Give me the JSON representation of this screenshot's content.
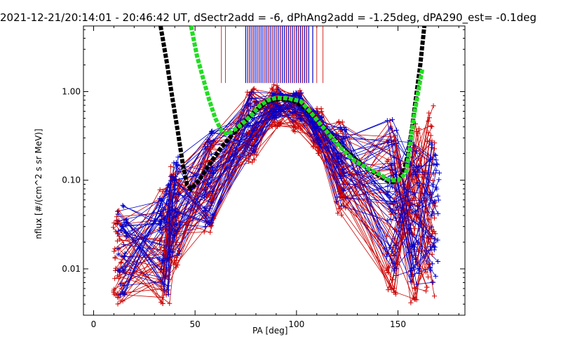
{
  "chart_data": {
    "type": "line",
    "title": "2021-12-21/20:14:01 - 20:46:42 UT, dSectr2add = -6, dPhAng2add = -1.25deg, dPA290_est= -0.1deg",
    "xlabel": "PA [deg]",
    "ylabel": "nflux [#/(cm^2 s sr MeV)]",
    "x_ticks": [
      "0",
      "50",
      "100",
      "150"
    ],
    "y_ticks": [
      "0.01",
      "0.10",
      "1.00"
    ],
    "xlim": [
      -5,
      183
    ],
    "ylim": [
      0.003,
      5.5
    ],
    "y_scale": "log",
    "legend": "none",
    "series": [
      {
        "type": "dashed-thick",
        "color": "#000000",
        "points": [
          [
            33,
            5.5
          ],
          [
            36,
            2.2
          ],
          [
            39,
            0.8
          ],
          [
            42,
            0.3
          ],
          [
            44,
            0.15
          ],
          [
            46,
            0.09
          ],
          [
            48,
            0.08
          ],
          [
            52,
            0.1
          ],
          [
            57,
            0.15
          ],
          [
            62,
            0.22
          ],
          [
            68,
            0.32
          ],
          [
            74,
            0.45
          ],
          [
            80,
            0.62
          ],
          [
            86,
            0.78
          ],
          [
            92,
            0.83
          ],
          [
            98,
            0.8
          ],
          [
            104,
            0.66
          ],
          [
            110,
            0.48
          ],
          [
            116,
            0.34
          ],
          [
            122,
            0.24
          ],
          [
            128,
            0.18
          ],
          [
            134,
            0.14
          ],
          [
            140,
            0.115
          ],
          [
            144,
            0.1
          ],
          [
            147,
            0.095
          ],
          [
            150,
            0.1
          ],
          [
            153,
            0.13
          ],
          [
            155,
            0.2
          ],
          [
            157,
            0.4
          ],
          [
            159,
            0.9
          ],
          [
            161,
            2.0
          ],
          [
            163,
            5.5
          ]
        ]
      },
      {
        "type": "dashed-thick",
        "color": "#22dd22",
        "points": [
          [
            48,
            5.5
          ],
          [
            51,
            2.5
          ],
          [
            54,
            1.4
          ],
          [
            57,
            0.8
          ],
          [
            60,
            0.5
          ],
          [
            63,
            0.36
          ],
          [
            66,
            0.33
          ],
          [
            70,
            0.38
          ],
          [
            74,
            0.45
          ],
          [
            78,
            0.55
          ],
          [
            82,
            0.7
          ],
          [
            86,
            0.8
          ],
          [
            90,
            0.85
          ],
          [
            96,
            0.84
          ],
          [
            102,
            0.78
          ],
          [
            106,
            0.62
          ],
          [
            110,
            0.48
          ],
          [
            116,
            0.33
          ],
          [
            122,
            0.23
          ],
          [
            128,
            0.17
          ],
          [
            134,
            0.14
          ],
          [
            140,
            0.12
          ],
          [
            146,
            0.1
          ],
          [
            150,
            0.1
          ],
          [
            154,
            0.12
          ],
          [
            156,
            0.25
          ],
          [
            158,
            0.55
          ],
          [
            160,
            1.0
          ],
          [
            162,
            1.8
          ]
        ]
      }
    ],
    "groups": [
      {
        "color": "#0000cc",
        "envelope_x": [
          14,
          35,
          40,
          57,
          78,
          90,
          100,
          110,
          122,
          147,
          158,
          168
        ],
        "envelope_lo": [
          0.005,
          0.005,
          0.012,
          0.03,
          0.2,
          0.5,
          0.45,
          0.25,
          0.05,
          0.008,
          0.006,
          0.006
        ],
        "envelope_hi": [
          0.06,
          0.09,
          0.2,
          0.4,
          1.0,
          1.1,
          1.0,
          0.6,
          0.4,
          0.5,
          0.4,
          0.3
        ]
      },
      {
        "color": "#cc0000",
        "envelope_x": [
          12,
          35,
          40,
          57,
          78,
          90,
          100,
          110,
          122,
          147,
          158,
          166
        ],
        "envelope_lo": [
          0.004,
          0.004,
          0.01,
          0.025,
          0.15,
          0.4,
          0.35,
          0.2,
          0.04,
          0.005,
          0.004,
          0.004
        ],
        "envelope_hi": [
          0.05,
          0.08,
          0.15,
          0.3,
          1.1,
          1.2,
          1.05,
          0.7,
          0.5,
          0.6,
          0.5,
          0.7
        ]
      }
    ],
    "vertical_lines": {
      "blue_x": [
        75,
        76,
        77,
        78,
        79,
        80,
        81,
        82,
        83,
        84,
        85,
        86,
        87,
        88,
        89,
        90,
        91,
        92,
        93,
        94,
        95,
        96,
        97,
        98,
        99,
        100,
        101,
        102,
        103,
        104,
        105,
        106,
        108
      ],
      "red_x": [
        63,
        65,
        76,
        78,
        81,
        84,
        86,
        88,
        90,
        92,
        95,
        97,
        99,
        101,
        103,
        105,
        110,
        113
      ]
    }
  }
}
